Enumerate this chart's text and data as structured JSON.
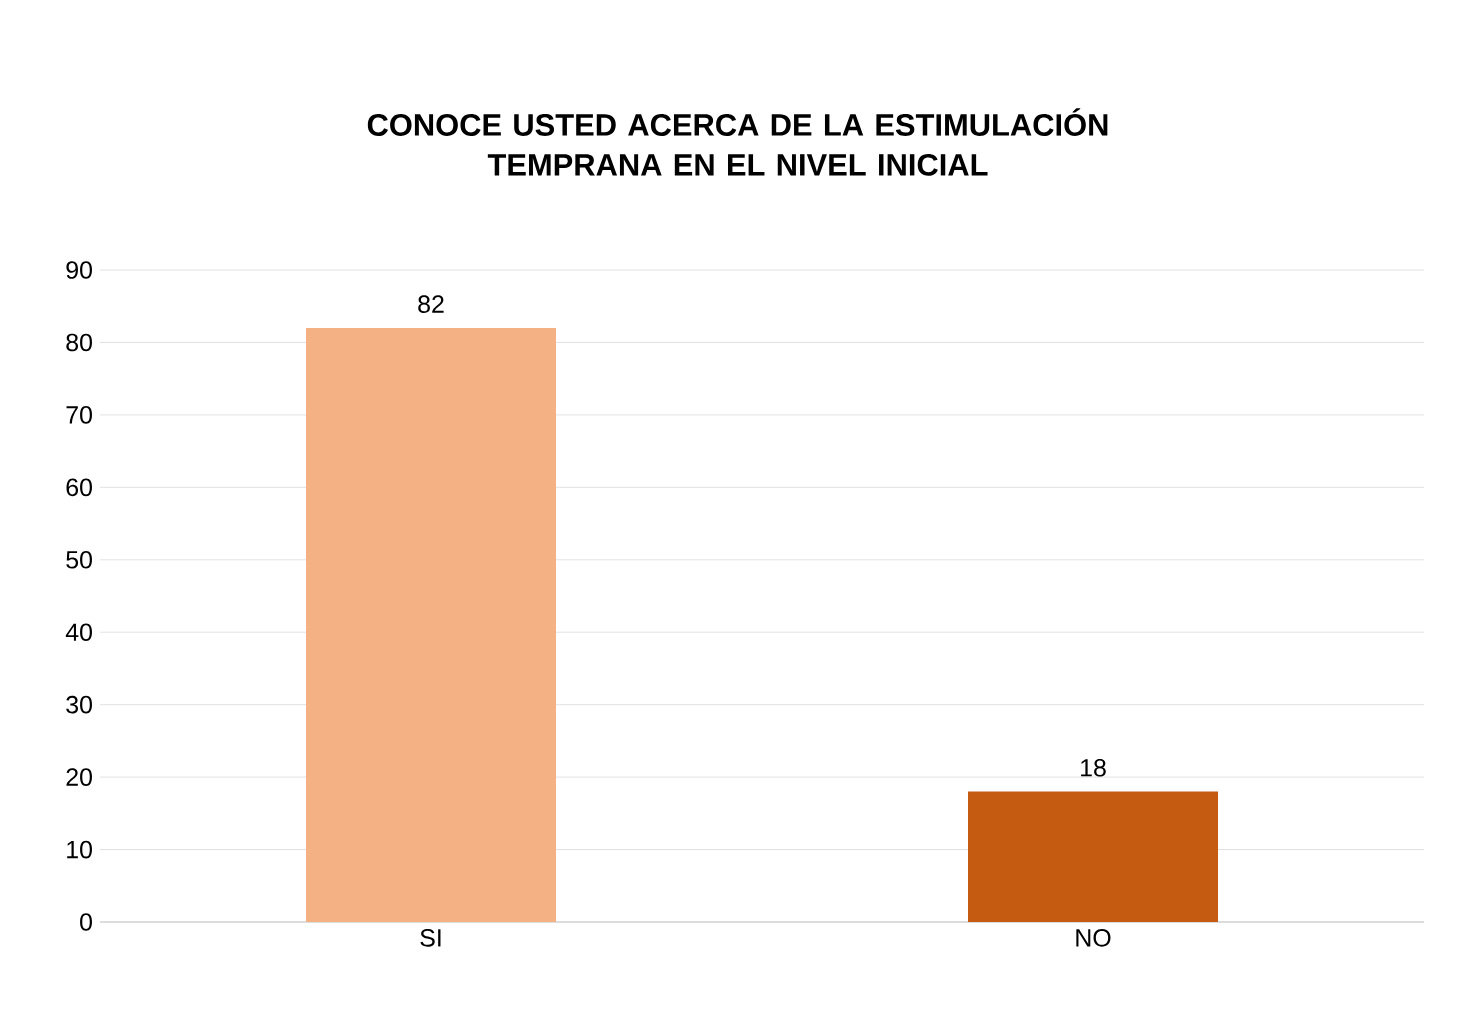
{
  "chart_data": {
    "type": "bar",
    "title": "CONOCE USTED ACERCA DE LA ESTIMULACIÓN TEMPRANA EN EL NIVEL INICIAL",
    "categories": [
      "SI",
      "NO"
    ],
    "values": [
      82,
      18
    ],
    "colors": [
      "#f4b183",
      "#c55a11"
    ],
    "ylim": [
      0,
      90
    ],
    "yticks": [
      0,
      10,
      20,
      30,
      40,
      50,
      60,
      70,
      80,
      90
    ],
    "grid": "y",
    "data_labels": true
  }
}
